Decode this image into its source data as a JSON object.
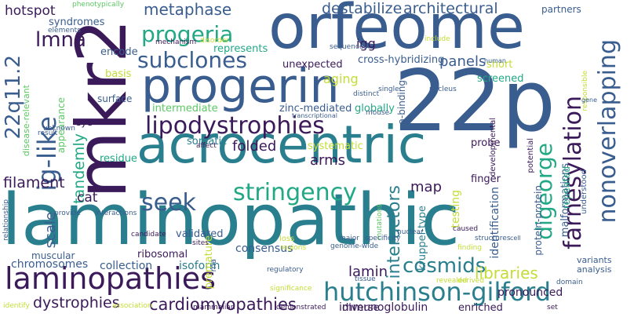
{
  "palette": {
    "purple": "#3b1a5a",
    "indigo": "#3f3d7f",
    "blue": "#3a5d8f",
    "teal": "#2a7f8e",
    "aqua": "#22a884",
    "green": "#5cc863",
    "lime": "#a0da39",
    "yellow": "#c4dd36"
  },
  "words": [
    {
      "text": "laminopathic",
      "color": "#2a7f8e"
    },
    {
      "text": "22p",
      "color": "#3a5d8f"
    },
    {
      "text": "mkr2",
      "color": "#3b1a5a"
    },
    {
      "text": "orfeome",
      "color": "#3a5d8f"
    },
    {
      "text": "acrocentric",
      "color": "#2a7f8e"
    },
    {
      "text": "progerin",
      "color": "#3a5d8f"
    },
    {
      "text": "laminopathies",
      "color": "#3b1a5a"
    },
    {
      "text": "hutchinson-gilford",
      "color": "#2a7f8e"
    },
    {
      "text": "lipodystrophies",
      "color": "#3b1a5a"
    },
    {
      "text": "stringency",
      "color": "#22a884"
    },
    {
      "text": "progeria",
      "color": "#22a884"
    },
    {
      "text": "subclones",
      "color": "#3a5d8f"
    },
    {
      "text": "seek",
      "color": "#3a5d8f"
    },
    {
      "text": "digeorge",
      "color": "#22a884"
    },
    {
      "text": "nonoverlapping",
      "color": "#3a5d8f"
    },
    {
      "text": "farnesylation",
      "color": "#3b1a5a"
    },
    {
      "text": "ig-like",
      "color": "#3a5d8f"
    },
    {
      "text": "22q11.2",
      "color": "#3a5d8f"
    },
    {
      "text": "lmna",
      "color": "#3b1a5a"
    },
    {
      "text": "cosmids",
      "color": "#2a7f8e"
    },
    {
      "text": "cardiomyopathies",
      "color": "#3b1a5a"
    },
    {
      "text": "dystrophies",
      "color": "#3b1a5a"
    },
    {
      "text": "libraries",
      "color": "#c4dd36"
    },
    {
      "text": "metaphase",
      "color": "#3a5d8f"
    },
    {
      "text": "destabilize",
      "color": "#3a5d8f"
    },
    {
      "text": "architectural",
      "color": "#3a5d8f"
    },
    {
      "text": "interactors",
      "color": "#2a7f8e"
    },
    {
      "text": "filament",
      "color": "#3b1a5a"
    },
    {
      "text": "tandemly",
      "color": "#22a884"
    },
    {
      "text": "hotspot",
      "color": "#3b1a5a"
    },
    {
      "text": "arms",
      "color": "#3b1a5a"
    },
    {
      "text": "folded",
      "color": "#3b1a5a"
    },
    {
      "text": "panels",
      "color": "#3a5d8f"
    },
    {
      "text": "lamin",
      "color": "#3b1a5a"
    },
    {
      "text": "map",
      "color": "#3b1a5a"
    },
    {
      "text": "igg",
      "color": "#3b1a5a"
    },
    {
      "text": "consensus",
      "color": "#3a5d8f"
    },
    {
      "text": "chromosomes",
      "color": "#3a5d8f"
    },
    {
      "text": "collection",
      "color": "#3a5d8f"
    },
    {
      "text": "isoform",
      "color": "#2a7f8e"
    },
    {
      "text": "immunoglobulin",
      "color": "#3b1a5a"
    },
    {
      "text": "pronounced",
      "color": "#3b1a5a"
    },
    {
      "text": "diverse",
      "color": "#3b1a5a"
    },
    {
      "text": "enriched",
      "color": "#3b1a5a"
    },
    {
      "text": "scale",
      "color": "#3a5d8f"
    },
    {
      "text": "muscular",
      "color": "#3a5d8f"
    },
    {
      "text": "cat",
      "color": "#3b1a5a"
    },
    {
      "text": "ribosomal",
      "color": "#3b1a5a"
    },
    {
      "text": "validated",
      "color": "#3a5d8f"
    },
    {
      "text": "somatic",
      "color": "#2a7f8e"
    },
    {
      "text": "residue",
      "color": "#22a884"
    },
    {
      "text": "aging",
      "color": "#c4dd36"
    },
    {
      "text": "systematic",
      "color": "#c4dd36"
    },
    {
      "text": "probe",
      "color": "#3b1a5a"
    },
    {
      "text": "finger",
      "color": "#3b1a5a"
    },
    {
      "text": "unexpected",
      "color": "#3b1a5a"
    },
    {
      "text": "cross-hybridizing",
      "color": "#3a5d8f"
    },
    {
      "text": "zinc-mediated",
      "color": "#3a5d8f"
    },
    {
      "text": "globally",
      "color": "#22a884"
    },
    {
      "text": "screened",
      "color": "#22a884"
    },
    {
      "text": "short",
      "color": "#c4dd36"
    },
    {
      "text": "basis",
      "color": "#c4dd36"
    },
    {
      "text": "represents",
      "color": "#22a884"
    },
    {
      "text": "encode",
      "color": "#3a5d8f"
    },
    {
      "text": "surface",
      "color": "#3a5d8f"
    },
    {
      "text": "intermediate",
      "color": "#5cc863"
    },
    {
      "text": "eye",
      "color": "#3b1a5a"
    },
    {
      "text": "appearance",
      "color": "#5cc863"
    },
    {
      "text": "disease-relevant",
      "color": "#5cc863"
    },
    {
      "text": "syndromes",
      "color": "#3a5d8f"
    },
    {
      "text": "partners",
      "color": "#3a5d8f"
    },
    {
      "text": "premature",
      "color": "#c4dd36"
    },
    {
      "text": "kruppel-type",
      "color": "#2a7f8e"
    },
    {
      "text": "a-binding",
      "color": "#3a5d8f"
    },
    {
      "text": "testing",
      "color": "#c4dd36"
    },
    {
      "text": "identification",
      "color": "#3a5d8f"
    },
    {
      "text": "malformations",
      "color": "#3a5d8f"
    },
    {
      "text": "protein-protein",
      "color": "#3a5d8f"
    },
    {
      "text": "repeated",
      "color": "#22a884"
    },
    {
      "text": "variants",
      "color": "#3a5d8f"
    },
    {
      "text": "analysis",
      "color": "#3a5d8f"
    },
    {
      "text": "understood",
      "color": "#3a5d8f"
    },
    {
      "text": "developmental",
      "color": "#3b1a5a"
    },
    {
      "text": "potential",
      "color": "#3b1a5a"
    },
    {
      "text": "responsible",
      "color": "#c4dd36"
    },
    {
      "text": "phenotypically",
      "color": "#5cc863"
    },
    {
      "text": "mechanism",
      "color": "#3b1a5a"
    },
    {
      "text": "disorder",
      "color": "#c4dd36"
    },
    {
      "text": "sequences",
      "color": "#3a5d8f"
    },
    {
      "text": "include",
      "color": "#c4dd36"
    },
    {
      "text": "elements",
      "color": "#3a5d8f"
    },
    {
      "text": "distinct",
      "color": "#3a5d8f"
    },
    {
      "text": "human",
      "color": "#3a5d8f"
    },
    {
      "text": "single",
      "color": "#3a5d8f"
    },
    {
      "text": "nucleus",
      "color": "#3a5d8f"
    },
    {
      "text": "transcriptional",
      "color": "#3a5d8f"
    },
    {
      "text": "mouse",
      "color": "#3a5d8f"
    },
    {
      "text": "mutations",
      "color": "#5cc863"
    },
    {
      "text": "genome-wide",
      "color": "#3a5d8f"
    },
    {
      "text": "loss",
      "color": "#c4dd36"
    },
    {
      "text": "regions",
      "color": "#c4dd36"
    },
    {
      "text": "finding",
      "color": "#c4dd36"
    },
    {
      "text": "structures",
      "color": "#3a5d8f"
    },
    {
      "text": "affect",
      "color": "#3b1a5a"
    },
    {
      "text": "interactions",
      "color": "#3a5d8f"
    },
    {
      "text": "unknown",
      "color": "#3a5d8f"
    },
    {
      "text": "provide",
      "color": "#3a5d8f"
    },
    {
      "text": "candidate",
      "color": "#3b1a5a"
    },
    {
      "text": "relationship",
      "color": "#3a5d8f"
    },
    {
      "text": "result",
      "color": "#3a5d8f"
    },
    {
      "text": "identify",
      "color": "#c4dd36"
    },
    {
      "text": "association",
      "color": "#c4dd36"
    },
    {
      "text": "mammalian",
      "color": "#3b1a5a"
    },
    {
      "text": "demonstrated",
      "color": "#3b1a5a"
    },
    {
      "text": "set",
      "color": "#3b1a5a"
    },
    {
      "text": "domain",
      "color": "#3a5d8f"
    },
    {
      "text": "revealed",
      "color": "#c4dd36"
    },
    {
      "text": "derived",
      "color": "#c4dd36"
    },
    {
      "text": "caused",
      "color": "#3b1a5a"
    },
    {
      "text": "nuclear",
      "color": "#3a5d8f"
    },
    {
      "text": "major",
      "color": "#3a5d8f"
    },
    {
      "text": "specificity",
      "color": "#3a5d8f"
    },
    {
      "text": "regulatory",
      "color": "#3a5d8f"
    },
    {
      "text": "rna",
      "color": "#3a5d8f"
    },
    {
      "text": "tissue",
      "color": "#3a5d8f"
    },
    {
      "text": "sites",
      "color": "#3b1a5a"
    },
    {
      "text": "significance",
      "color": "#c4dd36"
    },
    {
      "text": "cell",
      "color": "#3a5d8f"
    },
    {
      "text": "gene",
      "color": "#3a5d8f"
    }
  ]
}
